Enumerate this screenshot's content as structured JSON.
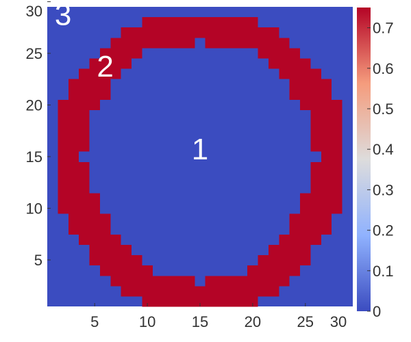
{
  "chart_data": {
    "type": "heatmap",
    "title": "",
    "xlabel": "",
    "ylabel": "",
    "xlim": [
      1,
      30
    ],
    "ylim": [
      1,
      30
    ],
    "x_ticks": [
      5,
      10,
      15,
      20,
      25,
      30
    ],
    "y_ticks": [
      5,
      10,
      15,
      20,
      25,
      30
    ],
    "colorbar": {
      "range": [
        0,
        0.75
      ],
      "ticks": [
        0,
        0.1,
        0.2,
        0.3,
        0.4,
        0.5,
        0.6,
        0.7
      ],
      "colormap": "coolwarm",
      "low_color": "#3b4cc0",
      "high_color": "#b40426"
    },
    "region_values": {
      "inside": 0,
      "ring": 0.75,
      "outside": 0
    },
    "ring_row_spans": [
      {
        "y": 1,
        "x_from": 9.5,
        "x_to": 20.5
      },
      {
        "y": 2,
        "x_from": 7.5,
        "x_to": 22.5
      },
      {
        "y": 3,
        "x_from": 6.5,
        "x_to": 23.5
      },
      {
        "y": 4,
        "x_from": 5.5,
        "x_to": 24.5
      },
      {
        "y": 5,
        "x_from": 4.5,
        "x_to": 25.5
      },
      {
        "y": 6,
        "x_from": 4.5,
        "x_to": 25.5
      },
      {
        "y": 7,
        "x_from": 3.5,
        "x_to": 26.5
      },
      {
        "y": 8,
        "x_from": 2.5,
        "x_to": 27.5
      },
      {
        "y": 9,
        "x_from": 2.5,
        "x_to": 27.5
      },
      {
        "y": 10,
        "x_from": 1.5,
        "x_to": 28.5
      },
      {
        "y": 11,
        "x_from": 1.5,
        "x_to": 28.5
      },
      {
        "y": 12,
        "x_from": 1.5,
        "x_to": 28.5
      },
      {
        "y": 13,
        "x_from": 1.5,
        "x_to": 28.5
      },
      {
        "y": 14,
        "x_from": 1.5,
        "x_to": 28.5
      },
      {
        "y": 15,
        "x_from": 1.5,
        "x_to": 28.5
      },
      {
        "y": 16,
        "x_from": 1.5,
        "x_to": 28.5
      },
      {
        "y": 17,
        "x_from": 1.5,
        "x_to": 28.5
      },
      {
        "y": 18,
        "x_from": 1.5,
        "x_to": 28.5
      },
      {
        "y": 19,
        "x_from": 1.5,
        "x_to": 28.5
      },
      {
        "y": 20,
        "x_from": 1.5,
        "x_to": 28.5
      },
      {
        "y": 21,
        "x_from": 2.5,
        "x_to": 27.5
      },
      {
        "y": 22,
        "x_from": 2.5,
        "x_to": 27.5
      },
      {
        "y": 23,
        "x_from": 3.5,
        "x_to": 26.5
      },
      {
        "y": 24,
        "x_from": 4.5,
        "x_to": 25.5
      },
      {
        "y": 25,
        "x_from": 5.5,
        "x_to": 24.5
      },
      {
        "y": 26,
        "x_from": 6.5,
        "x_to": 23.5
      },
      {
        "y": 27,
        "x_from": 7.5,
        "x_to": 22.5
      },
      {
        "y": 28,
        "x_from": 9.5,
        "x_to": 20.5
      }
    ],
    "inner_row_spans": [
      {
        "y": 3,
        "x_from": 14.5,
        "x_to": 15.5
      },
      {
        "y": 4,
        "x_from": 10.5,
        "x_to": 19.5
      },
      {
        "y": 5,
        "x_from": 9.5,
        "x_to": 20.5
      },
      {
        "y": 6,
        "x_from": 8.5,
        "x_to": 21.5
      },
      {
        "y": 7,
        "x_from": 7.5,
        "x_to": 22.5
      },
      {
        "y": 8,
        "x_from": 6.5,
        "x_to": 23.5
      },
      {
        "y": 9,
        "x_from": 6.5,
        "x_to": 23.5
      },
      {
        "y": 10,
        "x_from": 5.5,
        "x_to": 24.5
      },
      {
        "y": 11,
        "x_from": 5.5,
        "x_to": 24.5
      },
      {
        "y": 12,
        "x_from": 4.5,
        "x_to": 25.5
      },
      {
        "y": 13,
        "x_from": 4.5,
        "x_to": 25.5
      },
      {
        "y": 14,
        "x_from": 4.5,
        "x_to": 25.5
      },
      {
        "y": 15,
        "x_from": 3.5,
        "x_to": 26.5
      },
      {
        "y": 16,
        "x_from": 4.5,
        "x_to": 25.5
      },
      {
        "y": 17,
        "x_from": 4.5,
        "x_to": 25.5
      },
      {
        "y": 18,
        "x_from": 4.5,
        "x_to": 25.5
      },
      {
        "y": 19,
        "x_from": 4.5,
        "x_to": 25.5
      },
      {
        "y": 20,
        "x_from": 5.5,
        "x_to": 24.5
      },
      {
        "y": 21,
        "x_from": 6.5,
        "x_to": 23.5
      },
      {
        "y": 22,
        "x_from": 6.5,
        "x_to": 23.5
      },
      {
        "y": 23,
        "x_from": 7.5,
        "x_to": 22.5
      },
      {
        "y": 24,
        "x_from": 8.5,
        "x_to": 21.5
      },
      {
        "y": 25,
        "x_from": 9.5,
        "x_to": 20.5
      },
      {
        "y": 26,
        "x_from": 14.5,
        "x_to": 15.5
      }
    ],
    "annotations": [
      {
        "text": "1",
        "x": 15,
        "y": 15.5
      },
      {
        "text": "2",
        "x": 6,
        "y": 23.5
      },
      {
        "text": "3",
        "x": 2,
        "y": 28.5
      }
    ]
  }
}
